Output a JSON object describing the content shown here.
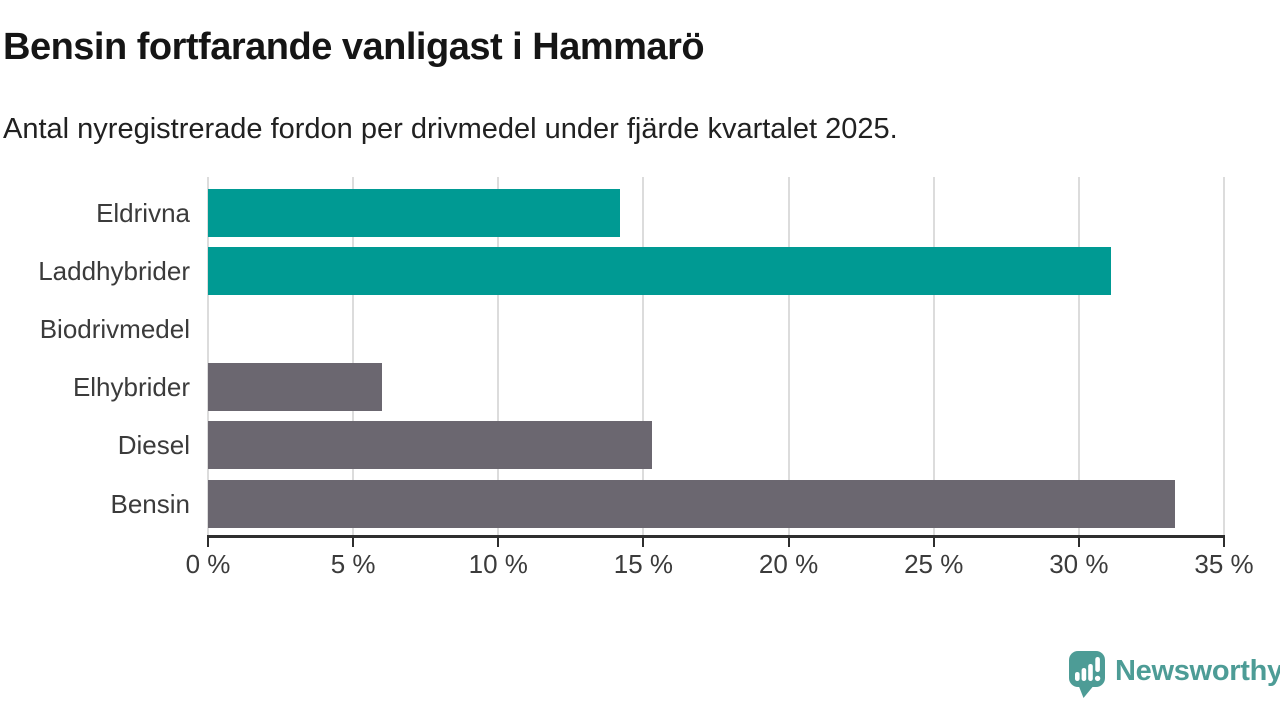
{
  "header": {
    "title": "Bensin fortfarande vanligast i Hammarö",
    "subtitle": "Antal nyregistrerade fordon per drivmedel under fjärde kvartalet 2025."
  },
  "chart_data": {
    "type": "bar",
    "orientation": "horizontal",
    "title": "Bensin fortfarande vanligast i Hammarö",
    "subtitle": "Antal nyregistrerade fordon per drivmedel under fjärde kvartalet 2025.",
    "categories": [
      "Eldrivna",
      "Laddhybrider",
      "Biodrivmedel",
      "Elhybrider",
      "Diesel",
      "Bensin"
    ],
    "values": [
      14.2,
      31.1,
      0,
      6.0,
      15.3,
      33.3
    ],
    "unit": "%",
    "xlim": [
      0,
      35
    ],
    "x_ticks": [
      0,
      5,
      10,
      15,
      20,
      25,
      30,
      35
    ],
    "x_tick_labels": [
      "0 %",
      "5 %",
      "10 %",
      "15 %",
      "20 %",
      "25 %",
      "30 %",
      "35 %"
    ],
    "bar_colors": [
      "#009a93",
      "#009a93",
      "#6b6770",
      "#6b6770",
      "#6b6770",
      "#6b6770"
    ],
    "grid": "vertical",
    "legend": "none",
    "accent_teal": "#009a93",
    "accent_gray": "#6b6770",
    "gridline_color": "#dcdcdc",
    "axis_color": "#2e2e2e"
  },
  "footer": {
    "brand": "Newsworthy",
    "brand_color": "#4d9c96",
    "logo_icon": "speech-bubble-bar-chart-icon"
  }
}
